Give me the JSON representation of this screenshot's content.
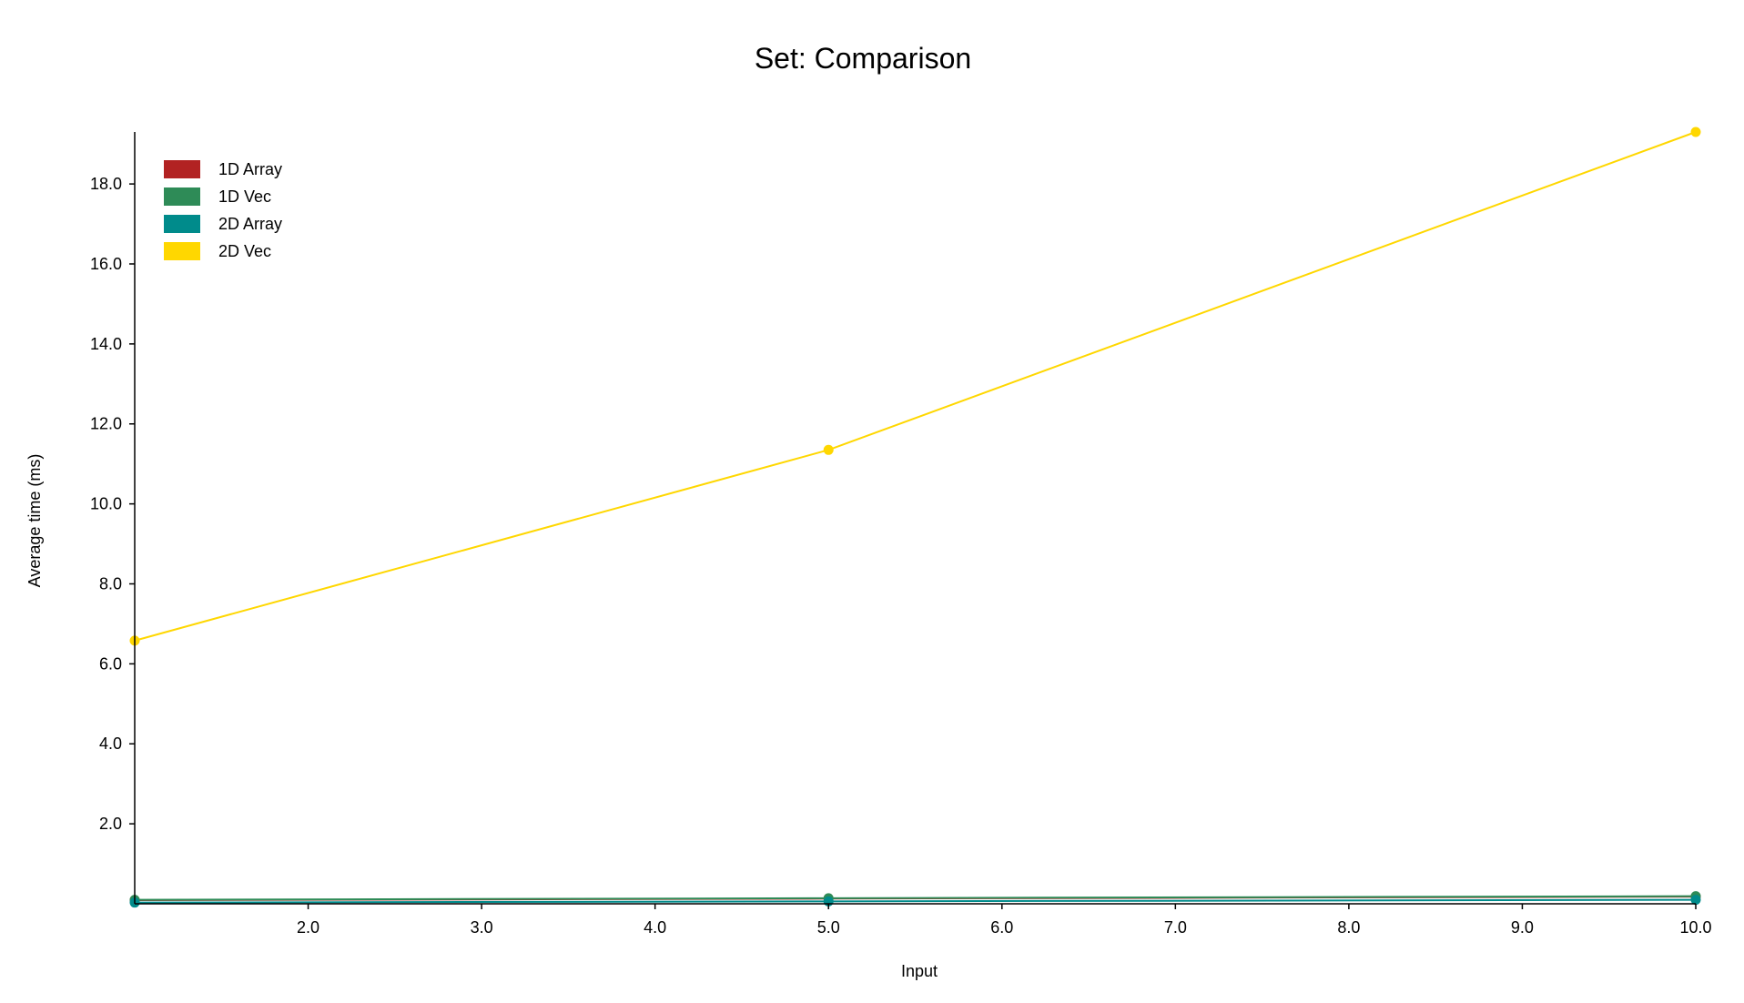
{
  "chart_data": {
    "type": "line",
    "title": "Set: Comparison",
    "xlabel": "Input",
    "ylabel": "Average time (ms)",
    "xlim": [
      1,
      10
    ],
    "ylim": [
      0,
      19.3
    ],
    "x_ticks": [
      2,
      3,
      4,
      5,
      6,
      7,
      8,
      9,
      10
    ],
    "y_ticks": [
      2,
      4,
      6,
      8,
      10,
      12,
      14,
      16,
      18
    ],
    "x_tick_labels": [
      "2.0",
      "3.0",
      "4.0",
      "5.0",
      "6.0",
      "7.0",
      "8.0",
      "9.0",
      "10.0"
    ],
    "y_tick_labels": [
      "2.0",
      "4.0",
      "6.0",
      "8.0",
      "10.0",
      "12.0",
      "14.0",
      "16.0",
      "18.0"
    ],
    "grid": false,
    "legend_position": "top-left",
    "x": [
      1,
      5,
      10
    ],
    "series": [
      {
        "name": "1D Array",
        "color": "#b22222",
        "values": [
          0.09,
          0.13,
          0.18
        ]
      },
      {
        "name": "1D Vec",
        "color": "#2e8b57",
        "values": [
          0.1,
          0.14,
          0.19
        ]
      },
      {
        "name": "2D Array",
        "color": "#008b8b",
        "values": [
          0.03,
          0.06,
          0.1
        ]
      },
      {
        "name": "2D Vec",
        "color": "#ffd700",
        "values": [
          6.58,
          11.35,
          19.3
        ]
      }
    ]
  }
}
